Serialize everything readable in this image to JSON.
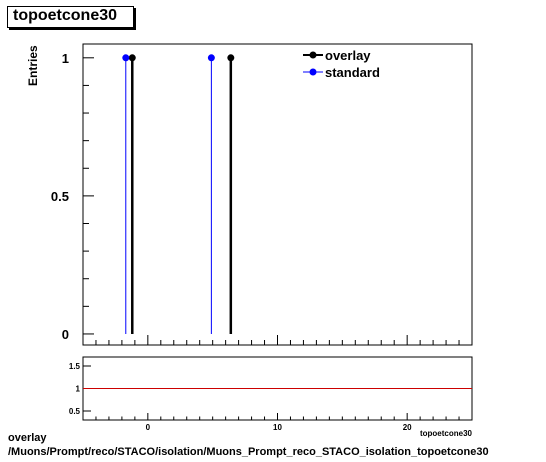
{
  "title": "topoetcone30",
  "footer": {
    "line1": "overlay",
    "line2": "/Muons/Prompt/reco/STACO/isolation/Muons_Prompt_reco_STACO_isolation_topoetcone30"
  },
  "chart_data": [
    {
      "type": "histogram",
      "title": "topoetcone30",
      "ylabel": "Entries",
      "xlabel": "topoetcone30",
      "xlim": [
        -5,
        25
      ],
      "ylim": [
        -0.04,
        1.05
      ],
      "yticks": [
        0,
        0.5,
        1
      ],
      "ytick_labels": [
        "0",
        "0.5",
        "1"
      ],
      "legend": {
        "position": "top-right"
      },
      "series": [
        {
          "name": "overlay",
          "color": "#000000",
          "x": [
            -1.2,
            6.4
          ],
          "y": [
            1,
            1
          ]
        },
        {
          "name": "standard",
          "color": "#0000ff",
          "x": [
            -1.7,
            4.9
          ],
          "y": [
            1,
            1
          ]
        }
      ]
    },
    {
      "type": "line",
      "xlim": [
        -5,
        25
      ],
      "ylim": [
        0.3,
        1.7
      ],
      "xticks": [
        0,
        10,
        20
      ],
      "xtick_labels": [
        "0",
        "10",
        "20"
      ],
      "yticks": [
        0.5,
        1,
        1.5
      ],
      "ytick_labels": [
        "0.5",
        "1",
        "1.5"
      ],
      "reference_line": {
        "y": 1,
        "color": "#cc0000"
      },
      "xlabel": "topoetcone30"
    }
  ]
}
